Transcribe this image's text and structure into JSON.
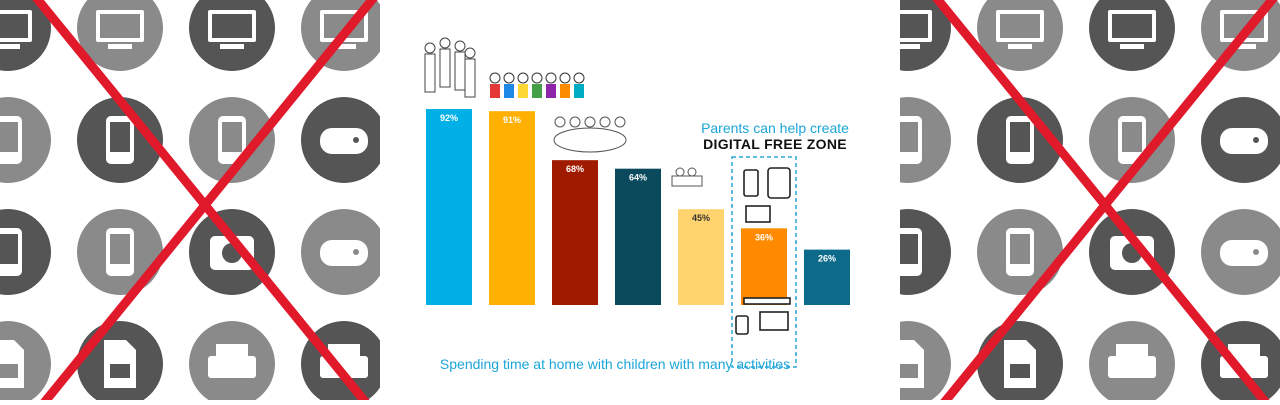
{
  "chart_data": {
    "type": "bar",
    "categories": [
      "",
      "",
      "",
      "",
      "",
      "",
      ""
    ],
    "values": [
      92,
      91,
      68,
      64,
      45,
      36,
      26
    ],
    "value_labels": [
      "92%",
      "91%",
      "68%",
      "64%",
      "45%",
      "36%",
      "26%"
    ],
    "colors": [
      "#00b0e6",
      "#ffb000",
      "#a01a00",
      "#0b4a5c",
      "#ffd36e",
      "#ff8a00",
      "#0e6a8a"
    ],
    "label_colors": [
      "#ffffff",
      "#ffffff",
      "#ffffff",
      "#ffffff",
      "#333333",
      "#ffffff",
      "#ffffff"
    ],
    "ylim": [
      0,
      100
    ],
    "grid": false,
    "highlight_index": 5,
    "title": "",
    "xlabel": "Spending time at home with children with many activities",
    "ylabel": ""
  },
  "headline": {
    "line1": "Parents can help create",
    "line2": "DIGITAL FREE ZONE"
  },
  "decor": {
    "left_icons": [
      "laptop-icon",
      "desktop-monitor-icon",
      "monitor-icon",
      "monitor-icon",
      "feature-phone-icon",
      "smartphone-icon",
      "tablet-icon",
      "handheld-console-icon",
      "mp3-player-icon",
      "headphones-icon",
      "camera-icon",
      "gamepad-icon",
      "sim-card-icon",
      "sd-card-icon",
      "printer-icon",
      "scanner-icon"
    ],
    "right_icons": [
      "laptop-icon",
      "desktop-monitor-icon",
      "monitor-icon",
      "monitor-icon",
      "feature-phone-icon",
      "smartphone-icon",
      "tablet-icon",
      "handheld-console-icon",
      "mp3-player-icon",
      "headphones-icon",
      "camera-icon",
      "gamepad-icon",
      "sim-card-icon",
      "sd-card-icon",
      "printer-icon",
      "scanner-icon"
    ],
    "cross_color": "#e0192b",
    "circle_colors": [
      "#555555",
      "#8a8a8a"
    ]
  }
}
